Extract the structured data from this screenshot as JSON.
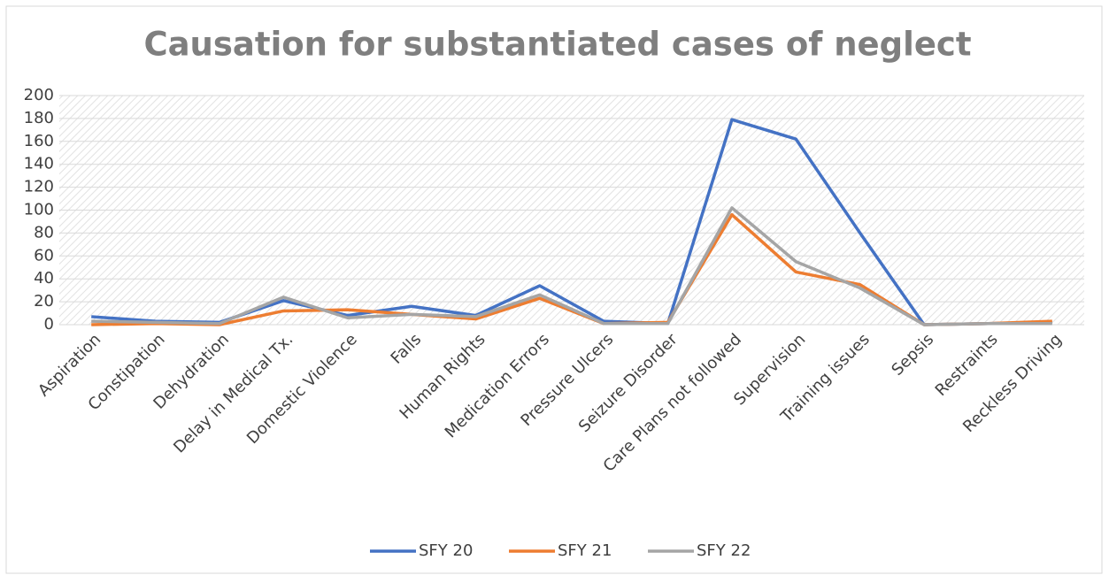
{
  "chart_data": {
    "type": "line",
    "title": "Causation for substantiated cases of neglect",
    "categories": [
      "Aspiration",
      "Constipation",
      "Dehydration",
      "Delay in Medical Tx.",
      "Domestic Violence",
      "Falls",
      "Human Rights",
      "Medication Errors",
      "Pressure Ulcers",
      "Seizure Disorder",
      "Care Plans not followed",
      "Supervision",
      "Training issues",
      "Sepsis",
      "Restraints",
      "Reckless Driving"
    ],
    "series": [
      {
        "name": "SFY 20",
        "color": "#4472c4",
        "values": [
          7,
          3,
          2,
          21,
          8,
          16,
          8,
          34,
          3,
          1,
          179,
          162,
          80,
          0,
          1,
          2
        ]
      },
      {
        "name": "SFY 21",
        "color": "#ed7d31",
        "values": [
          0,
          1,
          0,
          12,
          13,
          9,
          5,
          23,
          1,
          2,
          96,
          46,
          35,
          0,
          1,
          3
        ]
      },
      {
        "name": "SFY 22",
        "color": "#a5a5a5",
        "values": [
          3,
          2,
          1,
          24,
          6,
          9,
          7,
          26,
          1,
          1,
          102,
          55,
          32,
          0,
          1,
          1
        ]
      }
    ],
    "ylim": [
      0,
      200
    ],
    "yticks": [
      0,
      20,
      40,
      60,
      80,
      100,
      120,
      140,
      160,
      180,
      200
    ],
    "grid": true,
    "legend": "bottom"
  }
}
